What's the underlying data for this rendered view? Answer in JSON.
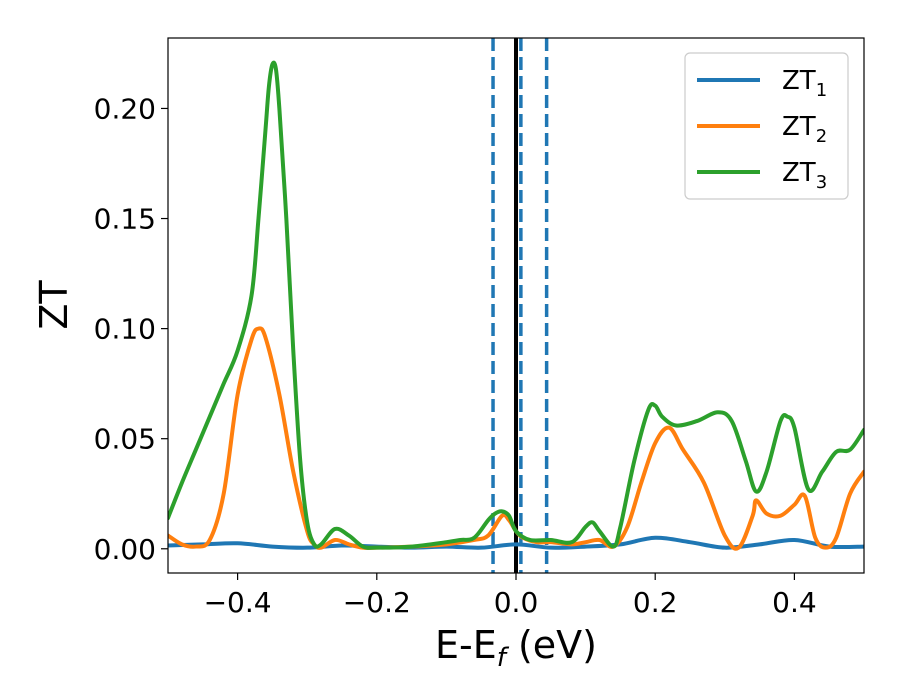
{
  "chart_data": {
    "type": "line",
    "xlabel": {
      "main": "E-E",
      "sub": "f",
      "unit": " (eV)"
    },
    "ylabel": "ZT",
    "xlim": [
      -0.5,
      0.5
    ],
    "ylim": [
      -0.011,
      0.232
    ],
    "xticks": [
      -0.4,
      -0.2,
      0.0,
      0.2,
      0.4
    ],
    "xtick_labels": [
      "−0.4",
      "−0.2",
      "0.0",
      "0.2",
      "0.4"
    ],
    "yticks": [
      0.0,
      0.05,
      0.1,
      0.15,
      0.2
    ],
    "ytick_labels": [
      "0.00",
      "0.05",
      "0.10",
      "0.15",
      "0.20"
    ],
    "grid": false,
    "legend_position": "top-right",
    "vlines": [
      {
        "x": 0.0,
        "style": "solid",
        "color": "#000000"
      },
      {
        "x": -0.033,
        "style": "dashed",
        "color": "#1f77b4"
      },
      {
        "x": 0.007,
        "style": "dashed",
        "color": "#1f77b4"
      },
      {
        "x": 0.044,
        "style": "dashed",
        "color": "#1f77b4"
      }
    ],
    "series": [
      {
        "name": "ZT",
        "name_sub": "1",
        "color": "#1f77b4",
        "x": [
          -0.5,
          -0.45,
          -0.4,
          -0.35,
          -0.3,
          -0.25,
          -0.2,
          -0.15,
          -0.1,
          -0.05,
          0.0,
          0.05,
          0.1,
          0.15,
          0.2,
          0.25,
          0.3,
          0.35,
          0.4,
          0.45,
          0.5
        ],
        "y": [
          0.0015,
          0.002,
          0.0025,
          0.001,
          0.0005,
          0.0015,
          0.001,
          0.0005,
          0.001,
          0.0005,
          0.002,
          0.0005,
          0.001,
          0.002,
          0.005,
          0.003,
          0.0005,
          0.002,
          0.004,
          0.001,
          0.001
        ]
      },
      {
        "name": "ZT",
        "name_sub": "2",
        "color": "#ff7f0e",
        "x": [
          -0.5,
          -0.48,
          -0.46,
          -0.44,
          -0.42,
          -0.4,
          -0.38,
          -0.37,
          -0.36,
          -0.34,
          -0.32,
          -0.3,
          -0.29,
          -0.28,
          -0.26,
          -0.24,
          -0.22,
          -0.2,
          -0.15,
          -0.1,
          -0.06,
          -0.04,
          -0.02,
          -0.01,
          0.0,
          0.01,
          0.03,
          0.05,
          0.08,
          0.1,
          0.12,
          0.14,
          0.16,
          0.18,
          0.2,
          0.22,
          0.24,
          0.27,
          0.3,
          0.32,
          0.34,
          0.345,
          0.36,
          0.38,
          0.4,
          0.415,
          0.43,
          0.445,
          0.46,
          0.48,
          0.5
        ],
        "y": [
          0.006,
          0.002,
          0.001,
          0.004,
          0.025,
          0.07,
          0.095,
          0.1,
          0.096,
          0.07,
          0.035,
          0.008,
          0.002,
          0.0005,
          0.004,
          0.002,
          0.0005,
          0.0005,
          0.001,
          0.002,
          0.004,
          0.006,
          0.015,
          0.013,
          0.008,
          0.005,
          0.003,
          0.003,
          0.002,
          0.003,
          0.004,
          0.001,
          0.01,
          0.03,
          0.048,
          0.055,
          0.045,
          0.03,
          0.006,
          0.0005,
          0.015,
          0.022,
          0.016,
          0.015,
          0.02,
          0.024,
          0.005,
          0.0005,
          0.005,
          0.025,
          0.035
        ]
      },
      {
        "name": "ZT",
        "name_sub": "3",
        "color": "#2ca02c",
        "x": [
          -0.5,
          -0.48,
          -0.46,
          -0.44,
          -0.42,
          -0.4,
          -0.38,
          -0.37,
          -0.36,
          -0.355,
          -0.35,
          -0.345,
          -0.34,
          -0.33,
          -0.32,
          -0.31,
          -0.3,
          -0.29,
          -0.28,
          -0.26,
          -0.24,
          -0.22,
          -0.2,
          -0.15,
          -0.1,
          -0.08,
          -0.06,
          -0.04,
          -0.03,
          -0.02,
          -0.01,
          0.0,
          0.02,
          0.05,
          0.08,
          0.1,
          0.11,
          0.12,
          0.14,
          0.15,
          0.17,
          0.19,
          0.2,
          0.21,
          0.23,
          0.26,
          0.29,
          0.31,
          0.33,
          0.345,
          0.36,
          0.38,
          0.39,
          0.4,
          0.42,
          0.44,
          0.46,
          0.48,
          0.5
        ],
        "y": [
          0.014,
          0.03,
          0.045,
          0.06,
          0.075,
          0.09,
          0.115,
          0.15,
          0.19,
          0.21,
          0.22,
          0.218,
          0.2,
          0.15,
          0.09,
          0.04,
          0.012,
          0.002,
          0.002,
          0.009,
          0.006,
          0.001,
          0.0005,
          0.001,
          0.003,
          0.004,
          0.005,
          0.013,
          0.016,
          0.017,
          0.015,
          0.008,
          0.004,
          0.004,
          0.003,
          0.01,
          0.012,
          0.008,
          0.001,
          0.01,
          0.04,
          0.063,
          0.065,
          0.06,
          0.056,
          0.058,
          0.062,
          0.058,
          0.04,
          0.026,
          0.035,
          0.058,
          0.06,
          0.055,
          0.027,
          0.035,
          0.044,
          0.045,
          0.054
        ]
      }
    ]
  }
}
